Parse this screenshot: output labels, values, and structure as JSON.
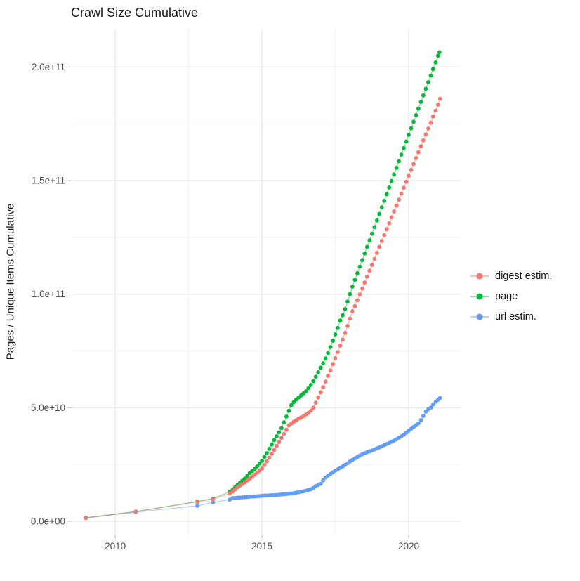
{
  "title": "Crawl Size Cumulative",
  "ylabel": "Pages / Unique Items Cumulative",
  "legend": {
    "position": "right",
    "items": [
      {
        "label": "digest estim.",
        "color": "#F8766D"
      },
      {
        "label": "page",
        "color": "#00BA38"
      },
      {
        "label": "url estim.",
        "color": "#619CFF"
      }
    ]
  },
  "colors": {
    "background": "#ffffff",
    "grid_major": "#e3e3e3",
    "grid_minor": "#f0f0f0",
    "tick_mark": "#b5b5b5",
    "tick_text": "#4d4d4d",
    "title_text": "#1a1a1a"
  },
  "chart_data": {
    "type": "scatter",
    "title": "Crawl Size Cumulative",
    "xlabel": "",
    "ylabel": "Pages / Unique Items Cumulative",
    "value_unit": 1000000000,
    "grid": true,
    "legend_position": "right",
    "xlim": [
      2008.49,
      2021.77
    ],
    "ylim_e9": [
      -6.2,
      216.5
    ],
    "x_ticks": [
      {
        "value": 2010,
        "label": "2010"
      },
      {
        "value": 2015,
        "label": "2015"
      },
      {
        "value": 2020,
        "label": "2020"
      }
    ],
    "x_minor": [
      2012.5,
      2017.5
    ],
    "y_ticks": [
      {
        "value_e9": 0,
        "label": "0.0e+00"
      },
      {
        "value_e9": 50,
        "label": "5.0e+10"
      },
      {
        "value_e9": 100,
        "label": "1.0e+11"
      },
      {
        "value_e9": 150,
        "label": "1.5e+11"
      },
      {
        "value_e9": 200,
        "label": "2.0e+11"
      }
    ],
    "y_minor_e9": [
      25,
      75,
      125,
      175
    ],
    "series": [
      {
        "name": "digest estim.",
        "color": "#F8766D",
        "points_year_value_e9": [
          [
            2009.0,
            1.5
          ],
          [
            2010.7,
            4.2
          ],
          [
            2012.8,
            8.5
          ],
          [
            2013.33,
            9.7
          ],
          [
            2013.9,
            12.2
          ],
          [
            2014.0,
            13.0
          ],
          [
            2014.083,
            14.0
          ],
          [
            2014.167,
            15.0
          ],
          [
            2014.25,
            15.7
          ],
          [
            2014.333,
            16.4
          ],
          [
            2014.417,
            17.2
          ],
          [
            2014.5,
            18.0
          ],
          [
            2014.583,
            18.8
          ],
          [
            2014.667,
            19.7
          ],
          [
            2014.75,
            20.5
          ],
          [
            2014.833,
            21.4
          ],
          [
            2014.917,
            22.3
          ],
          [
            2015.0,
            23.2
          ],
          [
            2015.083,
            24.8
          ],
          [
            2015.167,
            26.4
          ],
          [
            2015.25,
            28.0
          ],
          [
            2015.333,
            29.7
          ],
          [
            2015.417,
            31.4
          ],
          [
            2015.5,
            33.2
          ],
          [
            2015.583,
            34.9
          ],
          [
            2015.667,
            36.7
          ],
          [
            2015.75,
            38.5
          ],
          [
            2015.833,
            40.3
          ],
          [
            2015.917,
            42.2
          ],
          [
            2016.0,
            43.0
          ],
          [
            2016.083,
            43.8
          ],
          [
            2016.167,
            44.5
          ],
          [
            2016.25,
            45.2
          ],
          [
            2016.333,
            45.7
          ],
          [
            2016.417,
            46.3
          ],
          [
            2016.5,
            47.0
          ],
          [
            2016.583,
            47.7
          ],
          [
            2016.667,
            48.7
          ],
          [
            2016.75,
            50.0
          ],
          [
            2016.833,
            52.2
          ],
          [
            2016.917,
            54.5
          ],
          [
            2017.0,
            56.8
          ],
          [
            2017.083,
            59.0
          ],
          [
            2017.167,
            61.5
          ],
          [
            2017.25,
            64.0
          ],
          [
            2017.333,
            66.5
          ],
          [
            2017.417,
            69.2
          ],
          [
            2017.5,
            71.8
          ],
          [
            2017.583,
            74.5
          ],
          [
            2017.667,
            77.3
          ],
          [
            2017.75,
            80.0
          ],
          [
            2017.833,
            82.9
          ],
          [
            2017.917,
            86.0
          ],
          [
            2018.0,
            89.2
          ],
          [
            2018.083,
            92.5
          ],
          [
            2018.167,
            94.7
          ],
          [
            2018.25,
            97.3
          ],
          [
            2018.333,
            99.9
          ],
          [
            2018.417,
            102.5
          ],
          [
            2018.5,
            105.1
          ],
          [
            2018.583,
            107.7
          ],
          [
            2018.667,
            110.3
          ],
          [
            2018.75,
            112.9
          ],
          [
            2018.833,
            115.5
          ],
          [
            2018.917,
            118.2
          ],
          [
            2019.0,
            120.8
          ],
          [
            2019.083,
            123.4
          ],
          [
            2019.167,
            126.0
          ],
          [
            2019.25,
            128.6
          ],
          [
            2019.333,
            131.2
          ],
          [
            2019.417,
            133.8
          ],
          [
            2019.5,
            136.4
          ],
          [
            2019.583,
            139.0
          ],
          [
            2019.667,
            141.6
          ],
          [
            2019.75,
            144.2
          ],
          [
            2019.833,
            146.8
          ],
          [
            2019.917,
            149.5
          ],
          [
            2020.0,
            152.1
          ],
          [
            2020.083,
            154.7
          ],
          [
            2020.167,
            157.3
          ],
          [
            2020.25,
            159.9
          ],
          [
            2020.333,
            162.5
          ],
          [
            2020.417,
            165.1
          ],
          [
            2020.5,
            167.7
          ],
          [
            2020.583,
            170.3
          ],
          [
            2020.667,
            172.9
          ],
          [
            2020.75,
            175.5
          ],
          [
            2020.833,
            178.2
          ],
          [
            2020.917,
            180.8
          ],
          [
            2021.0,
            183.4
          ],
          [
            2021.07,
            186.0
          ]
        ]
      },
      {
        "name": "page",
        "color": "#00BA38",
        "points_year_value_e9": [
          [
            2009.0,
            1.6
          ],
          [
            2010.7,
            4.3
          ],
          [
            2012.8,
            8.7
          ],
          [
            2013.33,
            10.0
          ],
          [
            2013.9,
            13.0
          ],
          [
            2014.0,
            13.8
          ],
          [
            2014.083,
            14.9
          ],
          [
            2014.167,
            16.0
          ],
          [
            2014.25,
            16.9
          ],
          [
            2014.333,
            17.9
          ],
          [
            2014.417,
            18.8
          ],
          [
            2014.5,
            20.0
          ],
          [
            2014.583,
            21.2
          ],
          [
            2014.667,
            22.1
          ],
          [
            2014.75,
            23.0
          ],
          [
            2014.833,
            24.1
          ],
          [
            2014.917,
            25.4
          ],
          [
            2015.0,
            26.6
          ],
          [
            2015.083,
            28.3
          ],
          [
            2015.167,
            30.0
          ],
          [
            2015.25,
            31.9
          ],
          [
            2015.333,
            33.8
          ],
          [
            2015.417,
            35.7
          ],
          [
            2015.5,
            37.4
          ],
          [
            2015.583,
            39.1
          ],
          [
            2015.667,
            41.0
          ],
          [
            2015.75,
            43.5
          ],
          [
            2015.833,
            46.1
          ],
          [
            2015.917,
            48.6
          ],
          [
            2016.0,
            51.1
          ],
          [
            2016.083,
            52.4
          ],
          [
            2016.167,
            53.6
          ],
          [
            2016.25,
            54.5
          ],
          [
            2016.333,
            55.4
          ],
          [
            2016.417,
            56.3
          ],
          [
            2016.5,
            57.2
          ],
          [
            2016.583,
            58.6
          ],
          [
            2016.667,
            60.0
          ],
          [
            2016.75,
            61.7
          ],
          [
            2016.833,
            63.6
          ],
          [
            2016.917,
            65.6
          ],
          [
            2017.0,
            67.6
          ],
          [
            2017.083,
            69.6
          ],
          [
            2017.167,
            71.7
          ],
          [
            2017.25,
            74.1
          ],
          [
            2017.333,
            76.7
          ],
          [
            2017.417,
            79.5
          ],
          [
            2017.5,
            82.3
          ],
          [
            2017.583,
            85.1
          ],
          [
            2017.667,
            88.4
          ],
          [
            2017.75,
            90.7
          ],
          [
            2017.833,
            93.4
          ],
          [
            2017.917,
            96.7
          ],
          [
            2018.0,
            100.0
          ],
          [
            2018.083,
            103.3
          ],
          [
            2018.167,
            106.3
          ],
          [
            2018.25,
            109.2
          ],
          [
            2018.333,
            112.1
          ],
          [
            2018.417,
            115.0
          ],
          [
            2018.5,
            117.9
          ],
          [
            2018.583,
            120.8
          ],
          [
            2018.667,
            123.7
          ],
          [
            2018.75,
            126.6
          ],
          [
            2018.833,
            129.5
          ],
          [
            2018.917,
            132.4
          ],
          [
            2019.0,
            135.3
          ],
          [
            2019.083,
            138.2
          ],
          [
            2019.167,
            141.1
          ],
          [
            2019.25,
            144.0
          ],
          [
            2019.333,
            146.9
          ],
          [
            2019.417,
            149.8
          ],
          [
            2019.5,
            152.7
          ],
          [
            2019.583,
            155.6
          ],
          [
            2019.667,
            158.5
          ],
          [
            2019.75,
            161.4
          ],
          [
            2019.833,
            164.3
          ],
          [
            2019.917,
            167.2
          ],
          [
            2020.0,
            170.1
          ],
          [
            2020.083,
            173.0
          ],
          [
            2020.167,
            175.9
          ],
          [
            2020.25,
            178.8
          ],
          [
            2020.333,
            181.7
          ],
          [
            2020.417,
            184.6
          ],
          [
            2020.5,
            187.5
          ],
          [
            2020.583,
            190.4
          ],
          [
            2020.667,
            193.3
          ],
          [
            2020.75,
            196.2
          ],
          [
            2020.833,
            199.1
          ],
          [
            2020.917,
            202.0
          ],
          [
            2021.0,
            204.9
          ],
          [
            2021.05,
            206.5
          ]
        ]
      },
      {
        "name": "url estim.",
        "color": "#619CFF",
        "points_year_value_e9": [
          [
            2009.0,
            1.4
          ],
          [
            2010.7,
            4.0
          ],
          [
            2012.8,
            6.8
          ],
          [
            2013.33,
            8.3
          ],
          [
            2013.9,
            9.5
          ],
          [
            2014.0,
            10.2
          ],
          [
            2014.083,
            10.3
          ],
          [
            2014.167,
            10.4
          ],
          [
            2014.25,
            10.4
          ],
          [
            2014.333,
            10.5
          ],
          [
            2014.417,
            10.6
          ],
          [
            2014.5,
            10.7
          ],
          [
            2014.583,
            10.8
          ],
          [
            2014.667,
            10.9
          ],
          [
            2014.75,
            10.9
          ],
          [
            2014.833,
            11.0
          ],
          [
            2014.917,
            11.1
          ],
          [
            2015.0,
            11.2
          ],
          [
            2015.083,
            11.3
          ],
          [
            2015.167,
            11.3
          ],
          [
            2015.25,
            11.4
          ],
          [
            2015.333,
            11.5
          ],
          [
            2015.417,
            11.5
          ],
          [
            2015.5,
            11.6
          ],
          [
            2015.583,
            11.7
          ],
          [
            2015.667,
            11.8
          ],
          [
            2015.75,
            11.9
          ],
          [
            2015.833,
            12.0
          ],
          [
            2015.917,
            12.1
          ],
          [
            2016.0,
            12.2
          ],
          [
            2016.083,
            12.4
          ],
          [
            2016.167,
            12.6
          ],
          [
            2016.25,
            12.8
          ],
          [
            2016.333,
            13.0
          ],
          [
            2016.417,
            13.2
          ],
          [
            2016.5,
            13.5
          ],
          [
            2016.583,
            13.8
          ],
          [
            2016.667,
            14.1
          ],
          [
            2016.75,
            14.7
          ],
          [
            2016.833,
            15.5
          ],
          [
            2016.917,
            16.0
          ],
          [
            2017.0,
            16.5
          ],
          [
            2017.083,
            18.0
          ],
          [
            2017.167,
            19.3
          ],
          [
            2017.25,
            20.1
          ],
          [
            2017.333,
            20.8
          ],
          [
            2017.417,
            21.6
          ],
          [
            2017.5,
            22.3
          ],
          [
            2017.583,
            22.9
          ],
          [
            2017.667,
            23.5
          ],
          [
            2017.75,
            24.1
          ],
          [
            2017.833,
            24.8
          ],
          [
            2017.917,
            25.5
          ],
          [
            2018.0,
            26.3
          ],
          [
            2018.083,
            27.0
          ],
          [
            2018.167,
            27.7
          ],
          [
            2018.25,
            28.3
          ],
          [
            2018.333,
            28.9
          ],
          [
            2018.417,
            29.5
          ],
          [
            2018.5,
            30.0
          ],
          [
            2018.583,
            30.4
          ],
          [
            2018.667,
            30.8
          ],
          [
            2018.75,
            31.2
          ],
          [
            2018.833,
            31.6
          ],
          [
            2018.917,
            32.1
          ],
          [
            2019.0,
            32.5
          ],
          [
            2019.083,
            33.0
          ],
          [
            2019.167,
            33.5
          ],
          [
            2019.25,
            34.0
          ],
          [
            2019.333,
            34.5
          ],
          [
            2019.417,
            35.0
          ],
          [
            2019.5,
            35.5
          ],
          [
            2019.583,
            36.1
          ],
          [
            2019.667,
            36.8
          ],
          [
            2019.75,
            37.4
          ],
          [
            2019.833,
            38.1
          ],
          [
            2019.917,
            39.0
          ],
          [
            2020.0,
            39.9
          ],
          [
            2020.083,
            40.7
          ],
          [
            2020.167,
            41.5
          ],
          [
            2020.25,
            42.3
          ],
          [
            2020.333,
            43.1
          ],
          [
            2020.417,
            44.6
          ],
          [
            2020.5,
            46.4
          ],
          [
            2020.583,
            48.2
          ],
          [
            2020.667,
            49.3
          ],
          [
            2020.75,
            50.0
          ],
          [
            2020.833,
            51.4
          ],
          [
            2020.917,
            52.6
          ],
          [
            2021.0,
            53.5
          ],
          [
            2021.07,
            54.3
          ]
        ]
      }
    ]
  }
}
